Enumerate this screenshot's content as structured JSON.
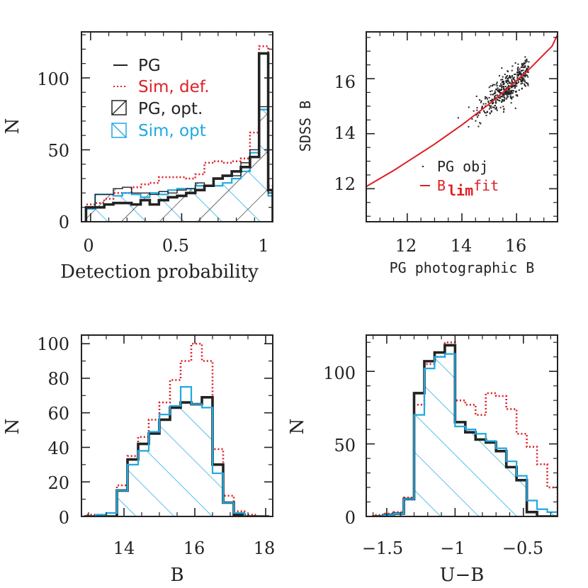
{
  "colors": {
    "pg": "#222222",
    "sim_def": "#dd1f26",
    "pg_opt": "#222222",
    "sim_opt": "#1fa9e1",
    "fit": "#dd1f26"
  },
  "chart_data": [
    {
      "id": "panel-detection",
      "type": "histogram",
      "xlabel": "Detection probability",
      "ylabel": "N",
      "xlim": [
        -0.05,
        1.0
      ],
      "ylim": [
        0,
        132
      ],
      "xticks": [
        "0",
        "0.5",
        "1"
      ],
      "yticks": [
        "0",
        "50",
        "100"
      ],
      "legend": [
        "PG",
        "Sim, def.",
        "PG, opt.",
        "Sim, opt"
      ],
      "bin_edges": [
        -0.025,
        0.025,
        0.075,
        0.125,
        0.175,
        0.225,
        0.275,
        0.325,
        0.375,
        0.425,
        0.475,
        0.525,
        0.575,
        0.625,
        0.675,
        0.725,
        0.775,
        0.825,
        0.875,
        0.925,
        0.975,
        1.0
      ],
      "series": [
        {
          "name": "PG",
          "values": [
            10,
            10,
            12,
            13,
            13,
            12,
            15,
            12,
            15,
            17,
            18,
            20,
            22,
            25,
            30,
            32,
            35,
            38,
            45,
            117,
            22
          ]
        },
        {
          "name": "Sim, def.",
          "values": [
            12,
            13,
            16,
            20,
            20,
            24,
            26,
            27,
            31,
            31,
            31,
            30,
            33,
            41,
            42,
            41,
            42,
            44,
            62,
            122,
            25
          ]
        },
        {
          "name": "PG, opt.",
          "values": [
            10,
            19,
            19,
            23,
            24,
            20,
            20,
            19,
            21,
            20,
            22,
            23,
            27,
            25,
            30,
            32,
            32,
            41,
            50,
            80,
            20
          ]
        },
        {
          "name": "Sim, opt",
          "values": [
            9,
            19,
            19,
            18,
            20,
            19,
            17,
            20,
            19,
            22,
            23,
            23,
            25,
            25,
            25,
            27,
            30,
            35,
            48,
            78,
            18
          ]
        }
      ]
    },
    {
      "id": "panel-scatter",
      "type": "scatter",
      "xlabel": "PG photographic B",
      "ylabel": "SDSS B",
      "xlim": [
        10.5,
        17.5
      ],
      "ylim": [
        10.8,
        17.7
      ],
      "xticks": [
        "12",
        "14",
        "16"
      ],
      "yticks": [
        "12",
        "14",
        "16"
      ],
      "legend": [
        "PG obj",
        "B",
        "lim",
        "fit"
      ],
      "fit_points": [
        [
          10.5,
          12.08
        ],
        [
          11.0,
          12.37
        ],
        [
          11.5,
          12.66
        ],
        [
          12.0,
          12.98
        ],
        [
          12.5,
          13.3
        ],
        [
          13.0,
          13.62
        ],
        [
          13.5,
          13.97
        ],
        [
          14.0,
          14.32
        ],
        [
          14.5,
          14.7
        ],
        [
          15.0,
          15.08
        ],
        [
          15.5,
          15.5
        ],
        [
          16.0,
          15.93
        ],
        [
          16.5,
          16.38
        ],
        [
          17.0,
          16.88
        ],
        [
          17.3,
          17.18
        ],
        [
          17.55,
          17.7
        ]
      ],
      "cloud_center": [
        15.7,
        15.75
      ],
      "cloud_count": 420
    },
    {
      "id": "panel-B",
      "type": "histogram",
      "xlabel": "B",
      "ylabel": "N",
      "xlim": [
        12.8,
        18.2
      ],
      "ylim": [
        0,
        105
      ],
      "xticks": [
        "14",
        "16",
        "18"
      ],
      "yticks": [
        "0",
        "20",
        "40",
        "60",
        "80",
        "100"
      ],
      "bin_edges": [
        12.9,
        13.2,
        13.5,
        13.8,
        14.1,
        14.4,
        14.7,
        15.0,
        15.3,
        15.6,
        15.9,
        16.2,
        16.5,
        16.8,
        17.1,
        17.4,
        17.7,
        18.1
      ],
      "series": [
        {
          "name": "PG",
          "values": [
            0,
            0,
            0,
            15,
            33,
            42,
            48,
            56,
            63,
            66,
            65,
            69,
            30,
            8,
            1,
            0,
            0
          ]
        },
        {
          "name": "Sim, def.",
          "values": [
            1,
            1,
            2,
            18,
            35,
            46,
            56,
            66,
            79,
            90,
            100,
            90,
            39,
            12,
            3,
            1,
            0
          ]
        },
        {
          "name": "Sim, opt",
          "values": [
            0,
            1,
            2,
            15,
            30,
            38,
            49,
            59,
            64,
            75,
            65,
            63,
            25,
            8,
            2,
            0,
            0
          ]
        }
      ]
    },
    {
      "id": "panel-UB",
      "type": "histogram",
      "xlabel": "U−B",
      "ylabel": "N",
      "xlim": [
        -1.65,
        -0.25
      ],
      "ylim": [
        0,
        125
      ],
      "xticks": [
        "−1.5",
        "−1",
        "−0.5"
      ],
      "yticks": [
        "0",
        "50",
        "100"
      ],
      "bin_edges": [
        -1.6,
        -1.525,
        -1.45,
        -1.375,
        -1.3,
        -1.225,
        -1.15,
        -1.075,
        -1.0,
        -0.925,
        -0.85,
        -0.775,
        -0.7,
        -0.625,
        -0.55,
        -0.475,
        -0.4,
        -0.325,
        -0.25
      ],
      "series": [
        {
          "name": "PG",
          "values": [
            0,
            1,
            2,
            12,
            85,
            107,
            113,
            118,
            65,
            58,
            53,
            51,
            45,
            34,
            25,
            3,
            0,
            0
          ]
        },
        {
          "name": "Sim, def.",
          "values": [
            1,
            2,
            3,
            13,
            77,
            105,
            110,
            120,
            80,
            77,
            70,
            85,
            83,
            74,
            57,
            48,
            36,
            20
          ]
        },
        {
          "name": "Sim, opt",
          "values": [
            0,
            1,
            2,
            12,
            70,
            102,
            110,
            112,
            62,
            60,
            57,
            52,
            47,
            38,
            28,
            11,
            5,
            3
          ]
        }
      ]
    }
  ]
}
